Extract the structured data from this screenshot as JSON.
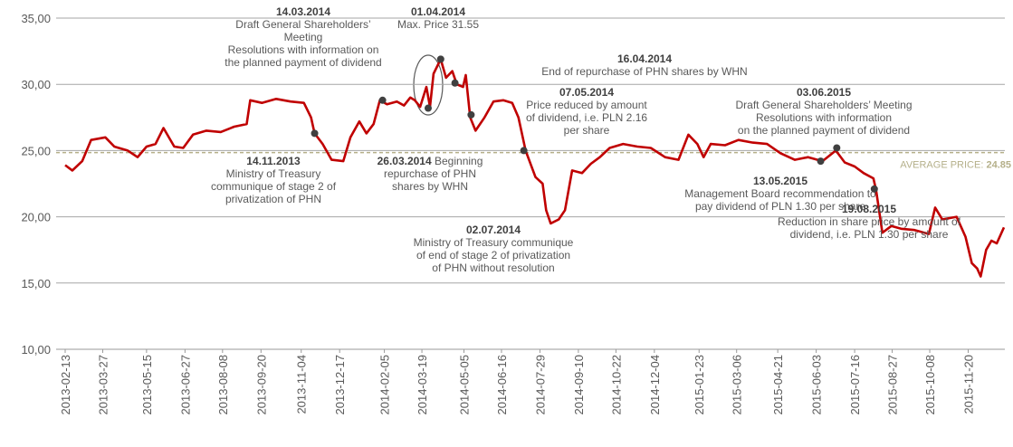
{
  "chart_data": {
    "type": "line",
    "x": [
      "2013-02-13",
      "2013-02-21",
      "2013-03-04",
      "2013-03-14",
      "2013-03-30",
      "2013-04-09",
      "2013-04-24",
      "2013-05-05",
      "2013-05-15",
      "2013-05-25",
      "2013-06-03",
      "2013-06-15",
      "2013-06-25",
      "2013-07-06",
      "2013-07-21",
      "2013-08-06",
      "2013-08-21",
      "2013-09-04",
      "2013-09-08",
      "2013-09-21",
      "2013-10-07",
      "2013-10-23",
      "2013-11-07",
      "2013-11-15",
      "2013-11-19",
      "2013-11-28",
      "2013-12-08",
      "2013-12-21",
      "2013-12-29",
      "2014-01-08",
      "2014-01-16",
      "2014-01-24",
      "2014-01-31",
      "2014-02-08",
      "2014-02-19",
      "2014-02-27",
      "2014-03-06",
      "2014-03-11",
      "2014-03-17",
      "2014-03-24",
      "2014-03-28",
      "2014-04-01",
      "2014-04-09",
      "2014-04-15",
      "2014-04-22",
      "2014-04-27",
      "2014-05-04",
      "2014-05-07",
      "2014-05-12",
      "2014-05-18",
      "2014-05-28",
      "2014-06-07",
      "2014-06-18",
      "2014-06-28",
      "2014-07-05",
      "2014-07-13",
      "2014-07-24",
      "2014-08-01",
      "2014-08-05",
      "2014-08-10",
      "2014-08-19",
      "2014-08-26",
      "2014-09-03",
      "2014-09-14",
      "2014-09-24",
      "2014-10-04",
      "2014-10-15",
      "2014-10-30",
      "2014-11-15",
      "2014-11-30",
      "2014-12-16",
      "2014-12-31",
      "2015-01-11",
      "2015-01-21",
      "2015-01-28",
      "2015-02-05",
      "2015-02-21",
      "2015-03-08",
      "2015-03-24",
      "2015-04-09",
      "2015-04-24",
      "2015-05-10",
      "2015-05-25",
      "2015-06-10",
      "2015-06-25",
      "2015-07-05",
      "2015-07-16",
      "2015-07-26",
      "2015-08-06",
      "2015-08-09",
      "2015-08-16",
      "2015-08-26",
      "2015-09-06",
      "2015-09-21",
      "2015-10-07",
      "2015-10-14",
      "2015-10-22",
      "2015-11-07",
      "2015-11-17",
      "2015-11-24",
      "2015-11-30",
      "2015-12-04",
      "2015-12-10",
      "2015-12-16",
      "2015-12-22",
      "2015-12-30"
    ],
    "series": [
      {
        "color": "#c00000",
        "values": [
          23.9,
          23.5,
          24.2,
          25.8,
          26.0,
          25.3,
          25.0,
          24.5,
          25.3,
          25.5,
          26.7,
          25.3,
          25.2,
          26.2,
          26.5,
          26.4,
          26.8,
          27.0,
          28.8,
          28.6,
          28.9,
          28.7,
          28.6,
          27.5,
          26.3,
          25.5,
          24.3,
          24.2,
          26.0,
          27.2,
          26.3,
          27.0,
          28.8,
          28.5,
          28.7,
          28.4,
          29.0,
          28.8,
          28.3,
          29.8,
          28.3,
          30.8,
          31.9,
          30.5,
          31.0,
          30.0,
          29.8,
          30.7,
          27.5,
          26.5,
          27.5,
          28.7,
          28.8,
          28.6,
          27.5,
          25.0,
          23.0,
          22.5,
          20.5,
          19.5,
          19.8,
          20.5,
          23.5,
          23.3,
          24.0,
          24.5,
          25.2,
          25.5,
          25.3,
          25.2,
          24.5,
          24.3,
          26.2,
          25.5,
          24.5,
          25.5,
          25.4,
          25.8,
          25.6,
          25.5,
          24.8,
          24.3,
          24.5,
          24.2,
          25.0,
          24.1,
          23.8,
          23.3,
          22.9,
          22.0,
          18.8,
          19.3,
          19.1,
          19.0,
          18.7,
          20.7,
          19.8,
          20.0,
          18.5,
          16.5,
          16.1,
          15.5,
          17.5,
          18.2,
          18.0,
          19.2
        ]
      }
    ],
    "xlim": [
      "2013-02-13",
      "2015-12-31"
    ],
    "xticks": [
      "2013-02-13",
      "2013-03-27",
      "2013-05-15",
      "2013-06-27",
      "2013-08-08",
      "2013-09-20",
      "2013-11-04",
      "2013-12-17",
      "2014-02-05",
      "2014-03-19",
      "2014-05-05",
      "2014-06-16",
      "2014-07-29",
      "2014-09-10",
      "2014-10-22",
      "2014-12-04",
      "2015-01-23",
      "2015-03-06",
      "2015-04-21",
      "2015-06-03",
      "2015-07-16",
      "2015-08-27",
      "2015-10-08",
      "2015-11-20"
    ],
    "ylim": [
      10,
      35
    ],
    "yticks": [
      {
        "value": 10,
        "label": "10,00"
      },
      {
        "value": 15,
        "label": "15,00"
      },
      {
        "value": 20,
        "label": "20,00"
      },
      {
        "value": 25,
        "label": "25,00"
      },
      {
        "value": 30,
        "label": "30,00"
      },
      {
        "value": 35,
        "label": "35,00"
      }
    ],
    "grid": true,
    "average": {
      "label": "AVERAGE PRICE:",
      "value": 24.85,
      "color": "#b5b08a"
    },
    "annotations": [
      {
        "date": "14.03.2014",
        "lines": [
          "Draft General Shareholders’",
          "Meeting",
          "Resolutions with information on",
          "the planned payment of dividend"
        ],
        "x": "2014-02-03",
        "y": 28.8
      },
      {
        "date": "01.04.2014",
        "lines": [
          "Max. Price  31.55"
        ],
        "x": "2014-04-09",
        "y": 31.9
      },
      {
        "date": "16.04.2014",
        "lines": [
          "End of repurchase of PHN shares by WHN"
        ],
        "x": "2014-04-25",
        "y": 30.1
      },
      {
        "date": "07.05.2014",
        "lines": [
          "Price reduced by amount",
          "of dividend, i.e. PLN 2.16",
          "per share"
        ],
        "x": "2014-05-13",
        "y": 27.7
      },
      {
        "date": "03.06.2015",
        "lines": [
          "Draft General Shareholders’ Meeting",
          "Resolutions with information",
          "on the planned payment of dividend"
        ],
        "x": "2015-06-26",
        "y": 25.2
      },
      {
        "date": "14.11.2013",
        "lines": [
          "Ministry of Treasury",
          "communique of stage 2 of",
          "privatization of PHN"
        ],
        "x": "2013-11-19",
        "y": 26.3
      },
      {
        "date": "26.03.2014",
        "lines": [
          "Beginning",
          "repurchase of PHN",
          "shares by WHN"
        ],
        "inline_date": true,
        "x": "2014-03-26",
        "y": 28.2
      },
      {
        "date": "13.05.2015",
        "lines": [
          "Management Board recommendation to",
          "pay dividend of PLN 1.30 per share"
        ],
        "x": "2015-06-08",
        "y": 24.2
      },
      {
        "date": "02.07.2014",
        "lines": [
          "Ministry of Treasury communique",
          "of end of stage 2 of privatization",
          "of PHN without resolution"
        ],
        "x": "2014-07-11",
        "y": 25.0
      },
      {
        "date": "19.08.2015",
        "lines": [
          "Reduction in share price by amount of",
          "dividend, i.e. PLN 1.30 per share"
        ],
        "x": "2015-08-07",
        "y": 22.1
      }
    ]
  }
}
